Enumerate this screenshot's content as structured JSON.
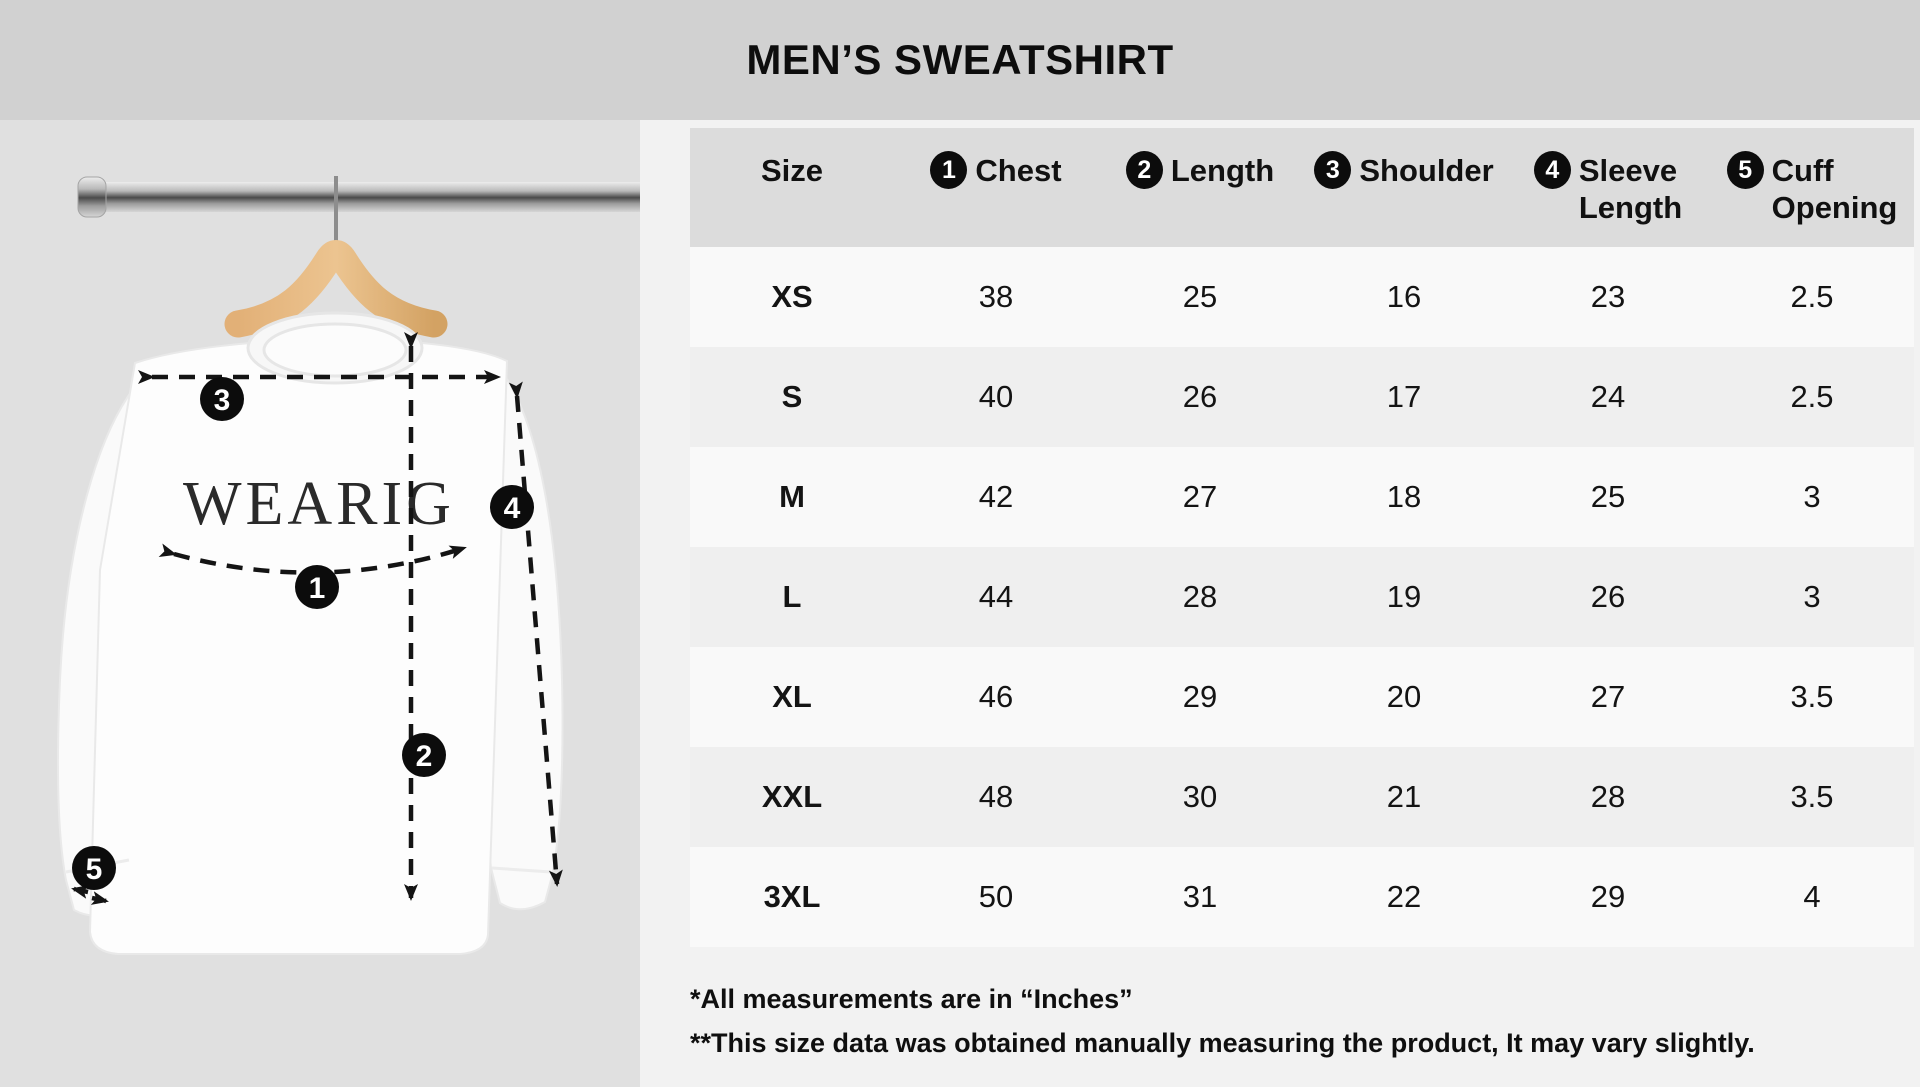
{
  "header": {
    "title": "MEN’S SWEATSHIRT"
  },
  "image": {
    "brand_text": "WEARIG",
    "markers": [
      "1",
      "2",
      "3",
      "4",
      "5"
    ]
  },
  "table": {
    "columns": [
      {
        "badge": "",
        "label": "Size"
      },
      {
        "badge": "1",
        "label": "Chest"
      },
      {
        "badge": "2",
        "label": "Length"
      },
      {
        "badge": "3",
        "label": "Shoulder"
      },
      {
        "badge": "4",
        "label": "Sleeve\nLength"
      },
      {
        "badge": "5",
        "label": "Cuff\nOpening"
      }
    ],
    "rows": [
      {
        "size": "XS",
        "chest": "38",
        "length": "25",
        "shoulder": "16",
        "sleeve_length": "23",
        "cuff_opening": "2.5"
      },
      {
        "size": "S",
        "chest": "40",
        "length": "26",
        "shoulder": "17",
        "sleeve_length": "24",
        "cuff_opening": "2.5"
      },
      {
        "size": "M",
        "chest": "42",
        "length": "27",
        "shoulder": "18",
        "sleeve_length": "25",
        "cuff_opening": "3"
      },
      {
        "size": "L",
        "chest": "44",
        "length": "28",
        "shoulder": "19",
        "sleeve_length": "26",
        "cuff_opening": "3"
      },
      {
        "size": "XL",
        "chest": "46",
        "length": "29",
        "shoulder": "20",
        "sleeve_length": "27",
        "cuff_opening": "3.5"
      },
      {
        "size": "XXL",
        "chest": "48",
        "length": "30",
        "shoulder": "21",
        "sleeve_length": "28",
        "cuff_opening": "3.5"
      },
      {
        "size": "3XL",
        "chest": "50",
        "length": "31",
        "shoulder": "22",
        "sleeve_length": "29",
        "cuff_opening": "4"
      }
    ]
  },
  "footnotes": [
    "*All measurements are in “Inches”",
    "**This size data was obtained manually measuring the product, It may vary slightly."
  ],
  "colors": {
    "top_bar": "#d1d1d1",
    "left_panel": "#e0e0e0",
    "right_panel": "#f2f2f2",
    "table_header": "#dcdcdc",
    "row_light": "#f9f9f9",
    "row_dark": "#efefef",
    "badge": "#0c0c0c",
    "text": "#111111"
  }
}
